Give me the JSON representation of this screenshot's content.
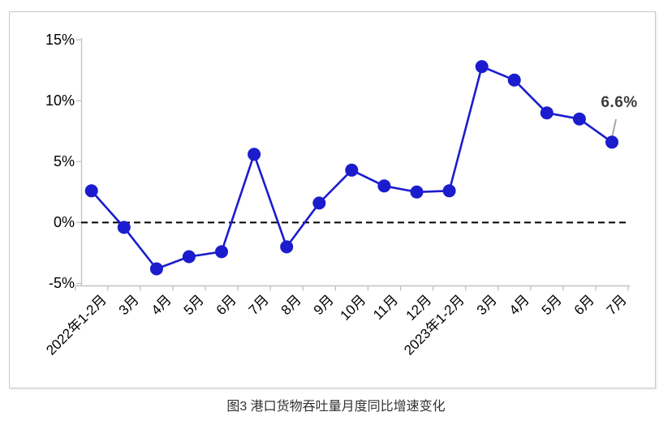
{
  "chart_data": {
    "type": "line",
    "title": "图3 港口货物吞吐量月度同比增速变化",
    "categories": [
      "2022年1-2月",
      "3月",
      "4月",
      "5月",
      "6月",
      "7月",
      "8月",
      "9月",
      "10月",
      "11月",
      "12月",
      "2023年1-2月",
      "3月",
      "4月",
      "5月",
      "6月",
      "7月"
    ],
    "series": [
      {
        "name": "港口货物吞吐量月度同比增速",
        "values": [
          2.6,
          -0.4,
          -3.8,
          -2.8,
          -2.4,
          5.6,
          -2.0,
          1.6,
          4.3,
          3.0,
          2.5,
          2.6,
          12.8,
          11.7,
          9.0,
          8.5,
          6.6
        ]
      }
    ],
    "yticks": [
      "15%",
      "10%",
      "5%",
      "0%",
      "-5%"
    ],
    "ytick_values": [
      15,
      10,
      5,
      0,
      -5
    ],
    "ylim": [
      -5,
      15
    ],
    "zero_line": "dashed-black",
    "grid": "off",
    "legend": "none",
    "annotation": {
      "text": "6.6%",
      "index": 16
    },
    "colors": {
      "line": "#1b1ccd",
      "marker": "#1b1ccd",
      "axis": "#c3c3c3",
      "zero_line": "#000000",
      "leader_line": "#a6a6a6",
      "annotation_text": "#3c3c3c",
      "caption_text": "#333333",
      "border": "#c8c8c8"
    }
  }
}
